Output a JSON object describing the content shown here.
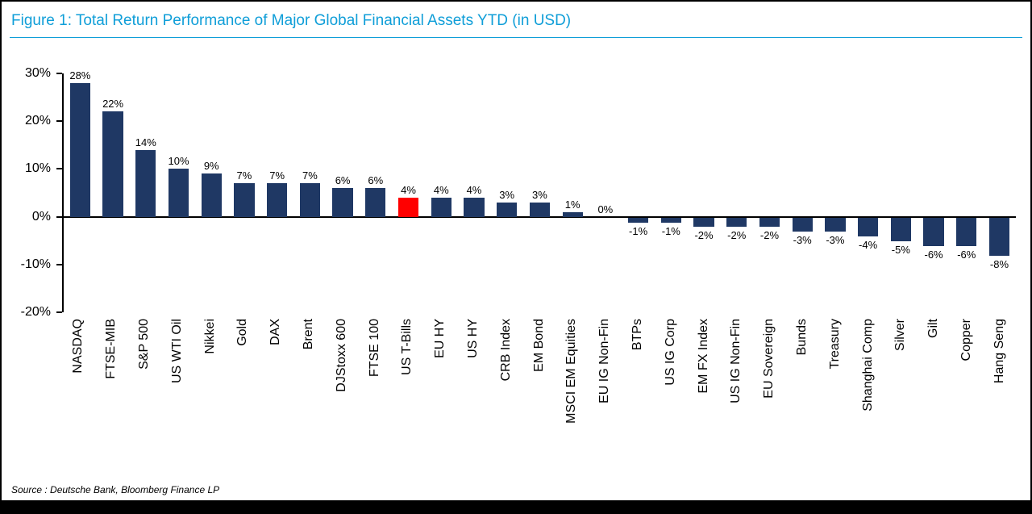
{
  "figure": {
    "title": "Figure 1: Total Return Performance of Major Global Financial Assets YTD (in USD)",
    "source": "Source : Deutsche Bank, Bloomberg Finance LP",
    "title_color": "#0f9ed8",
    "bar_color": "#1f3864",
    "highlight_color": "#ff0000"
  },
  "chart_data": {
    "type": "bar",
    "title": "Figure 1: Total Return Performance of Major Global Financial Assets YTD (in USD)",
    "categories": [
      "NASDAQ",
      "FTSE-MIB",
      "S&P 500",
      "US WTI Oil",
      "Nikkei",
      "Gold",
      "DAX",
      "Brent",
      "DJStoxx 600",
      "FTSE 100",
      "US T-Bills",
      "EU HY",
      "US HY",
      "CRB Index",
      "EM Bond",
      "MSCI EM Equities",
      "EU IG Non-Fin",
      "BTPs",
      "US IG Corp",
      "EM FX Index",
      "US IG Non-Fin",
      "EU Sovereign",
      "Bunds",
      "Treasury",
      "Shanghai Comp",
      "Silver",
      "Gilt",
      "Copper",
      "Hang Seng"
    ],
    "values": [
      28,
      22,
      14,
      10,
      9,
      7,
      7,
      7,
      6,
      6,
      4,
      4,
      4,
      3,
      3,
      1,
      0,
      -1,
      -1,
      -2,
      -2,
      -2,
      -3,
      -3,
      -4,
      -5,
      -6,
      -6,
      -8
    ],
    "value_labels": [
      "28%",
      "22%",
      "14%",
      "10%",
      "9%",
      "7%",
      "7%",
      "7%",
      "6%",
      "6%",
      "4%",
      "4%",
      "4%",
      "3%",
      "3%",
      "1%",
      "0%",
      "-1%",
      "-1%",
      "-2%",
      "-2%",
      "-2%",
      "-3%",
      "-3%",
      "-4%",
      "-5%",
      "-6%",
      "-6%",
      "-8%"
    ],
    "highlight_category": "US T-Bills",
    "xlabel": "",
    "ylabel": "",
    "ylim": [
      -20,
      30
    ],
    "yticks": [
      30,
      20,
      10,
      0,
      -10,
      -20
    ],
    "ytick_labels": [
      "30%",
      "20%",
      "10%",
      "0%",
      "-10%",
      "-20%"
    ],
    "grid": false,
    "legend_position": "none"
  }
}
